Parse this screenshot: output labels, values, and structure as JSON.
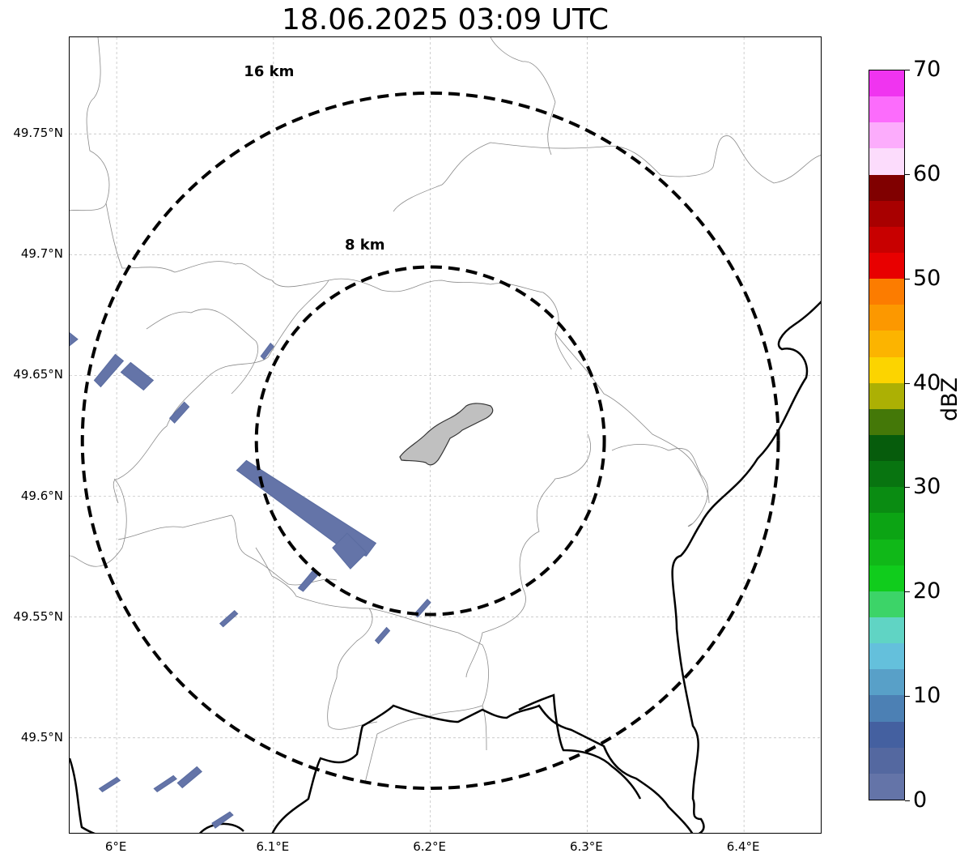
{
  "title": "18.06.2025 03:09 UTC",
  "map": {
    "lon_range": [
      5.97,
      6.45
    ],
    "lat_range": [
      49.46,
      49.79
    ],
    "lat_ticks": [
      {
        "value": 49.75,
        "label": "49.75°N"
      },
      {
        "value": 49.7,
        "label": "49.7°N"
      },
      {
        "value": 49.65,
        "label": "49.65°N"
      },
      {
        "value": 49.6,
        "label": "49.6°N"
      },
      {
        "value": 49.55,
        "label": "49.55°N"
      },
      {
        "value": 49.5,
        "label": "49.5°N"
      }
    ],
    "lon_ticks": [
      {
        "value": 6.0,
        "label": "6°E"
      },
      {
        "value": 6.1,
        "label": "6.1°E"
      },
      {
        "value": 6.2,
        "label": "6.2°E"
      },
      {
        "value": 6.3,
        "label": "6.3°E"
      },
      {
        "value": 6.4,
        "label": "6.4°E"
      }
    ],
    "grid": true,
    "range_rings": [
      {
        "label": "8 km",
        "radius_km": 8
      },
      {
        "label": "16 km",
        "radius_km": 16
      }
    ],
    "center": {
      "lon": 6.2,
      "lat": 49.623
    },
    "reflectivity_cells": [
      {
        "name": "cell-1",
        "lon": 5.97,
        "lat": 49.665,
        "dbz": 0
      },
      {
        "name": "cell-2",
        "lon": 5.995,
        "lat": 49.652,
        "dbz": 0
      },
      {
        "name": "cell-3",
        "lon": 6.012,
        "lat": 49.65,
        "dbz": 0
      },
      {
        "name": "cell-4",
        "lon": 6.04,
        "lat": 49.635,
        "dbz": 0
      },
      {
        "name": "cell-5",
        "lon": 6.095,
        "lat": 49.66,
        "dbz": 0
      },
      {
        "name": "cell-6",
        "lon": 6.123,
        "lat": 49.594,
        "dbz": 0
      },
      {
        "name": "cell-7",
        "lon": 6.148,
        "lat": 49.578,
        "dbz": 0
      },
      {
        "name": "cell-8",
        "lon": 6.122,
        "lat": 49.566,
        "dbz": 0
      },
      {
        "name": "cell-9",
        "lon": 6.071,
        "lat": 49.55,
        "dbz": 0
      },
      {
        "name": "cell-10",
        "lon": 6.169,
        "lat": 49.543,
        "dbz": 0
      },
      {
        "name": "cell-11",
        "lon": 6.194,
        "lat": 49.554,
        "dbz": 0
      },
      {
        "name": "cell-12",
        "lon": 5.995,
        "lat": 49.481,
        "dbz": 0
      },
      {
        "name": "cell-13",
        "lon": 6.031,
        "lat": 49.481,
        "dbz": 0
      },
      {
        "name": "cell-14",
        "lon": 6.046,
        "lat": 49.484,
        "dbz": 0
      },
      {
        "name": "cell-15",
        "lon": 6.067,
        "lat": 49.466,
        "dbz": 0
      }
    ]
  },
  "colorbar": {
    "unit": "dBZ",
    "min": 0,
    "max": 70,
    "ticks": [
      {
        "value": 0,
        "label": "0"
      },
      {
        "value": 10,
        "label": "10"
      },
      {
        "value": 20,
        "label": "20"
      },
      {
        "value": 30,
        "label": "30"
      },
      {
        "value": 40,
        "label": "40"
      },
      {
        "value": 50,
        "label": "50"
      },
      {
        "value": 60,
        "label": "60"
      },
      {
        "value": 70,
        "label": "70"
      }
    ],
    "colors": [
      "#6474a8",
      "#5468a0",
      "#4460a0",
      "#4c80b4",
      "#58a0c8",
      "#64c0dc",
      "#60d4c4",
      "#3cd468",
      "#10cc1c",
      "#10b818",
      "#0ca414",
      "#0a8c12",
      "#087410",
      "#065c0c",
      "#447808",
      "#acb004",
      "#fcd400",
      "#fcb400",
      "#fc9800",
      "#fc7c00",
      "#e80000",
      "#c80000",
      "#a80000",
      "#800000",
      "#fcdcfc",
      "#fcacfc",
      "#fc6cfc",
      "#f034f0"
    ]
  }
}
